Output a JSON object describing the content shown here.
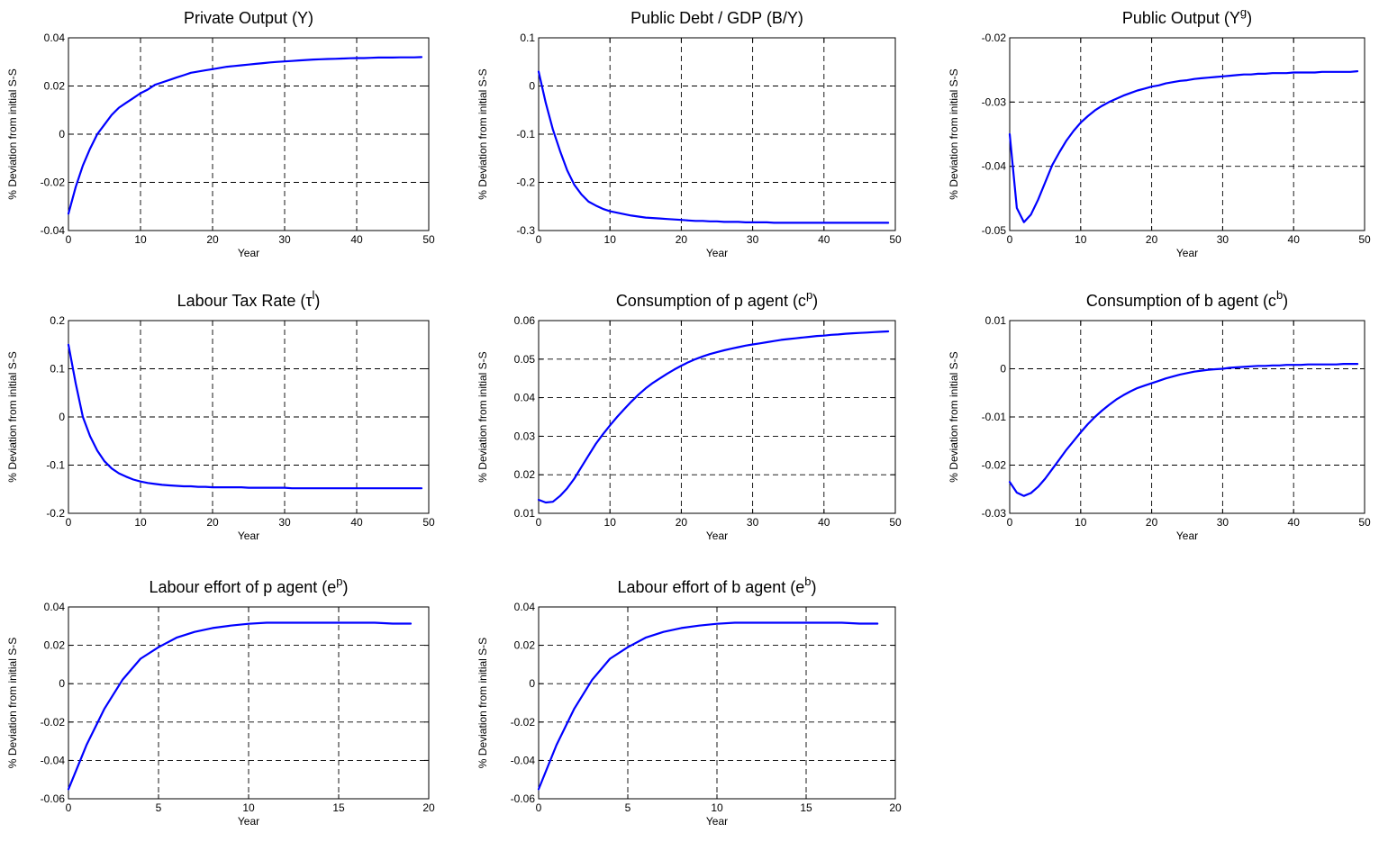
{
  "colors": {
    "series": "#0000ff",
    "axes": "#000000",
    "background": "#ffffff"
  },
  "chart_data": [
    {
      "type": "line",
      "title": {
        "text": "Private Output (Y)",
        "sup": "",
        "post": ""
      },
      "xlabel": "Year",
      "ylabel": "% Deviation from initial S-S",
      "xlim": [
        0,
        50
      ],
      "ylim": [
        -0.04,
        0.04
      ],
      "xticks": [
        "0",
        "10",
        "20",
        "30",
        "40",
        "50"
      ],
      "yticks": [
        "-0.04",
        "-0.02",
        "0",
        "0.02",
        "0.04"
      ],
      "grid": true,
      "x": [
        0,
        1,
        2,
        3,
        4,
        5,
        6,
        7,
        8,
        9,
        10,
        11,
        12,
        13,
        14,
        15,
        16,
        17,
        18,
        19,
        20,
        21,
        22,
        23,
        24,
        25,
        26,
        27,
        28,
        29,
        30,
        31,
        32,
        33,
        34,
        35,
        36,
        37,
        38,
        39,
        40,
        41,
        42,
        43,
        44,
        45,
        46,
        47,
        48,
        49
      ],
      "values": [
        -0.033,
        -0.022,
        -0.013,
        -0.006,
        0.0,
        0.004,
        0.008,
        0.011,
        0.013,
        0.015,
        0.017,
        0.0185,
        0.0205,
        0.0215,
        0.0225,
        0.0235,
        0.0245,
        0.0255,
        0.026,
        0.0265,
        0.027,
        0.0275,
        0.028,
        0.0283,
        0.0286,
        0.0289,
        0.0292,
        0.0295,
        0.0298,
        0.03,
        0.0302,
        0.0304,
        0.0306,
        0.0308,
        0.031,
        0.0311,
        0.0312,
        0.0313,
        0.0314,
        0.0315,
        0.0316,
        0.0316,
        0.0317,
        0.0318,
        0.0318,
        0.0318,
        0.0319,
        0.0319,
        0.0319,
        0.032
      ]
    },
    {
      "type": "line",
      "title": {
        "text": "Public Debt / GDP (B/Y)",
        "sup": "",
        "post": ""
      },
      "xlabel": "Year",
      "ylabel": "% Deviation from initial S-S",
      "xlim": [
        0,
        50
      ],
      "ylim": [
        -0.3,
        0.1
      ],
      "xticks": [
        "0",
        "10",
        "20",
        "30",
        "40",
        "50"
      ],
      "yticks": [
        "-0.3",
        "-0.2",
        "-0.1",
        "0",
        "0.1"
      ],
      "grid": true,
      "x": [
        0,
        1,
        2,
        3,
        4,
        5,
        6,
        7,
        8,
        9,
        10,
        11,
        12,
        13,
        14,
        15,
        16,
        17,
        18,
        19,
        20,
        21,
        22,
        23,
        24,
        25,
        26,
        27,
        28,
        29,
        30,
        31,
        32,
        33,
        34,
        35,
        36,
        37,
        38,
        39,
        40,
        41,
        42,
        43,
        44,
        45,
        46,
        47,
        48,
        49
      ],
      "values": [
        0.03,
        -0.035,
        -0.09,
        -0.135,
        -0.175,
        -0.205,
        -0.225,
        -0.24,
        -0.248,
        -0.255,
        -0.26,
        -0.263,
        -0.266,
        -0.269,
        -0.271,
        -0.273,
        -0.274,
        -0.275,
        -0.276,
        -0.277,
        -0.278,
        -0.279,
        -0.28,
        -0.28,
        -0.281,
        -0.281,
        -0.282,
        -0.282,
        -0.282,
        -0.283,
        -0.283,
        -0.283,
        -0.283,
        -0.284,
        -0.284,
        -0.284,
        -0.284,
        -0.284,
        -0.284,
        -0.284,
        -0.284,
        -0.284,
        -0.284,
        -0.284,
        -0.284,
        -0.284,
        -0.284,
        -0.284,
        -0.284,
        -0.284
      ]
    },
    {
      "type": "line",
      "title": {
        "text": "Public Output (Y",
        "sup": "g",
        "post": ")"
      },
      "xlabel": "Year",
      "ylabel": "% Deviation from initial S-S",
      "xlim": [
        0,
        50
      ],
      "ylim": [
        -0.05,
        -0.02
      ],
      "xticks": [
        "0",
        "10",
        "20",
        "30",
        "40",
        "50"
      ],
      "yticks": [
        "-0.05",
        "-0.04",
        "-0.03",
        "-0.02"
      ],
      "grid": true,
      "x": [
        0,
        1,
        2,
        3,
        4,
        5,
        6,
        7,
        8,
        9,
        10,
        11,
        12,
        13,
        14,
        15,
        16,
        17,
        18,
        19,
        20,
        21,
        22,
        23,
        24,
        25,
        26,
        27,
        28,
        29,
        30,
        31,
        32,
        33,
        34,
        35,
        36,
        37,
        38,
        39,
        40,
        41,
        42,
        43,
        44,
        45,
        46,
        47,
        48,
        49
      ],
      "values": [
        -0.035,
        -0.0465,
        -0.0487,
        -0.0475,
        -0.0452,
        -0.0425,
        -0.0398,
        -0.0378,
        -0.036,
        -0.0345,
        -0.0332,
        -0.0322,
        -0.0313,
        -0.0306,
        -0.03,
        -0.0295,
        -0.029,
        -0.0286,
        -0.0282,
        -0.0279,
        -0.0276,
        -0.0274,
        -0.0271,
        -0.0269,
        -0.0267,
        -0.0266,
        -0.0264,
        -0.0263,
        -0.0262,
        -0.0261,
        -0.026,
        -0.0259,
        -0.0258,
        -0.0257,
        -0.0257,
        -0.0256,
        -0.0256,
        -0.0255,
        -0.0255,
        -0.0255,
        -0.0254,
        -0.0254,
        -0.0254,
        -0.0254,
        -0.0253,
        -0.0253,
        -0.0253,
        -0.0253,
        -0.0253,
        -0.0252
      ]
    },
    {
      "type": "line",
      "title": {
        "text": "Labour Tax Rate (τ",
        "sup": "l",
        "post": ")"
      },
      "xlabel": "Year",
      "ylabel": "% Deviation from initial S-S",
      "xlim": [
        0,
        50
      ],
      "ylim": [
        -0.2,
        0.2
      ],
      "xticks": [
        "0",
        "10",
        "20",
        "30",
        "40",
        "50"
      ],
      "yticks": [
        "-0.2",
        "-0.1",
        "0",
        "0.1",
        "0.2"
      ],
      "grid": true,
      "x": [
        0,
        1,
        2,
        3,
        4,
        5,
        6,
        7,
        8,
        9,
        10,
        11,
        12,
        13,
        14,
        15,
        16,
        17,
        18,
        19,
        20,
        21,
        22,
        23,
        24,
        25,
        26,
        27,
        28,
        29,
        30,
        31,
        32,
        33,
        34,
        35,
        36,
        37,
        38,
        39,
        40,
        41,
        42,
        43,
        44,
        45,
        46,
        47,
        48,
        49
      ],
      "values": [
        0.15,
        0.07,
        0.0,
        -0.04,
        -0.07,
        -0.092,
        -0.107,
        -0.117,
        -0.124,
        -0.13,
        -0.134,
        -0.137,
        -0.139,
        -0.141,
        -0.142,
        -0.143,
        -0.144,
        -0.144,
        -0.145,
        -0.145,
        -0.146,
        -0.146,
        -0.146,
        -0.146,
        -0.146,
        -0.147,
        -0.147,
        -0.147,
        -0.147,
        -0.147,
        -0.147,
        -0.148,
        -0.148,
        -0.148,
        -0.148,
        -0.148,
        -0.148,
        -0.148,
        -0.148,
        -0.148,
        -0.148,
        -0.148,
        -0.148,
        -0.148,
        -0.148,
        -0.148,
        -0.148,
        -0.148,
        -0.148,
        -0.148
      ]
    },
    {
      "type": "line",
      "title": {
        "text": "Consumption of p agent (c",
        "sup": "p",
        "post": ")"
      },
      "xlabel": "Year",
      "ylabel": "% Deviation from initial S-S",
      "xlim": [
        0,
        50
      ],
      "ylim": [
        0.01,
        0.06
      ],
      "xticks": [
        "0",
        "10",
        "20",
        "30",
        "40",
        "50"
      ],
      "yticks": [
        "0.01",
        "0.02",
        "0.03",
        "0.04",
        "0.05",
        "0.06"
      ],
      "grid": true,
      "x": [
        0,
        1,
        2,
        3,
        4,
        5,
        6,
        7,
        8,
        9,
        10,
        11,
        12,
        13,
        14,
        15,
        16,
        17,
        18,
        19,
        20,
        21,
        22,
        23,
        24,
        25,
        26,
        27,
        28,
        29,
        30,
        31,
        32,
        33,
        34,
        35,
        36,
        37,
        38,
        39,
        40,
        41,
        42,
        43,
        44,
        45,
        46,
        47,
        48,
        49
      ],
      "values": [
        0.0135,
        0.0128,
        0.013,
        0.0145,
        0.0165,
        0.019,
        0.022,
        0.025,
        0.028,
        0.0305,
        0.0328,
        0.035,
        0.037,
        0.039,
        0.0408,
        0.0424,
        0.0438,
        0.045,
        0.0462,
        0.0473,
        0.0483,
        0.0492,
        0.05,
        0.0507,
        0.0513,
        0.0518,
        0.0523,
        0.0527,
        0.0531,
        0.0535,
        0.0538,
        0.0541,
        0.0544,
        0.0547,
        0.055,
        0.0552,
        0.0554,
        0.0556,
        0.0558,
        0.056,
        0.0561,
        0.0563,
        0.0564,
        0.0566,
        0.0567,
        0.0568,
        0.0569,
        0.057,
        0.0571,
        0.0572
      ]
    },
    {
      "type": "line",
      "title": {
        "text": "Consumption of b agent (c",
        "sup": "b",
        "post": ")"
      },
      "xlabel": "Year",
      "ylabel": "% Deviation from initial S-S",
      "xlim": [
        0,
        50
      ],
      "ylim": [
        -0.03,
        0.01
      ],
      "xticks": [
        "0",
        "10",
        "20",
        "30",
        "40",
        "50"
      ],
      "yticks": [
        "-0.03",
        "-0.02",
        "-0.01",
        "0",
        "0.01"
      ],
      "grid": true,
      "x": [
        0,
        1,
        2,
        3,
        4,
        5,
        6,
        7,
        8,
        9,
        10,
        11,
        12,
        13,
        14,
        15,
        16,
        17,
        18,
        19,
        20,
        21,
        22,
        23,
        24,
        25,
        26,
        27,
        28,
        29,
        30,
        31,
        32,
        33,
        34,
        35,
        36,
        37,
        38,
        39,
        40,
        41,
        42,
        43,
        44,
        45,
        46,
        47,
        48,
        49
      ],
      "values": [
        -0.0235,
        -0.0257,
        -0.0264,
        -0.0258,
        -0.0245,
        -0.0228,
        -0.0208,
        -0.0188,
        -0.0168,
        -0.015,
        -0.0132,
        -0.0115,
        -0.01,
        -0.0087,
        -0.0075,
        -0.0064,
        -0.0055,
        -0.0047,
        -0.004,
        -0.0035,
        -0.003,
        -0.0025,
        -0.002,
        -0.0016,
        -0.0012,
        -0.0009,
        -0.0006,
        -0.0004,
        -0.0002,
        -0.0001,
        0.0,
        0.0002,
        0.0003,
        0.0004,
        0.0005,
        0.0006,
        0.0006,
        0.0007,
        0.0007,
        0.0008,
        0.0008,
        0.0008,
        0.0009,
        0.0009,
        0.0009,
        0.0009,
        0.0009,
        0.001,
        0.001,
        0.001
      ]
    },
    {
      "type": "line",
      "title": {
        "text": "Labour effort of p agent (e",
        "sup": "p",
        "post": ")"
      },
      "xlabel": "Year",
      "ylabel": "% Deviation from initial S-S",
      "xlim": [
        0,
        20
      ],
      "ylim": [
        -0.06,
        0.04
      ],
      "xticks": [
        "0",
        "5",
        "10",
        "15",
        "20"
      ],
      "yticks": [
        "-0.06",
        "-0.04",
        "-0.02",
        "0",
        "0.02",
        "0.04"
      ],
      "grid": true,
      "x": [
        0,
        1,
        2,
        3,
        4,
        5,
        6,
        7,
        8,
        9,
        10,
        11,
        12,
        13,
        14,
        15,
        16,
        17,
        18,
        19
      ],
      "values": [
        -0.055,
        -0.032,
        -0.013,
        0.002,
        0.013,
        0.019,
        0.024,
        0.027,
        0.029,
        0.0303,
        0.0312,
        0.0318,
        0.0318,
        0.0318,
        0.0318,
        0.0318,
        0.0318,
        0.0318,
        0.0313,
        0.0313
      ]
    },
    {
      "type": "line",
      "title": {
        "text": "Labour effort of b agent (e",
        "sup": "b",
        "post": ")"
      },
      "xlabel": "Year",
      "ylabel": "% Deviation from initial S-S",
      "xlim": [
        0,
        20
      ],
      "ylim": [
        -0.06,
        0.04
      ],
      "xticks": [
        "0",
        "5",
        "10",
        "15",
        "20"
      ],
      "yticks": [
        "-0.06",
        "-0.04",
        "-0.02",
        "0",
        "0.02",
        "0.04"
      ],
      "grid": true,
      "x": [
        0,
        1,
        2,
        3,
        4,
        5,
        6,
        7,
        8,
        9,
        10,
        11,
        12,
        13,
        14,
        15,
        16,
        17,
        18,
        19
      ],
      "values": [
        -0.055,
        -0.032,
        -0.013,
        0.002,
        0.013,
        0.019,
        0.024,
        0.027,
        0.029,
        0.0303,
        0.0312,
        0.0318,
        0.0318,
        0.0318,
        0.0318,
        0.0318,
        0.0318,
        0.0318,
        0.0313,
        0.0313
      ]
    }
  ]
}
